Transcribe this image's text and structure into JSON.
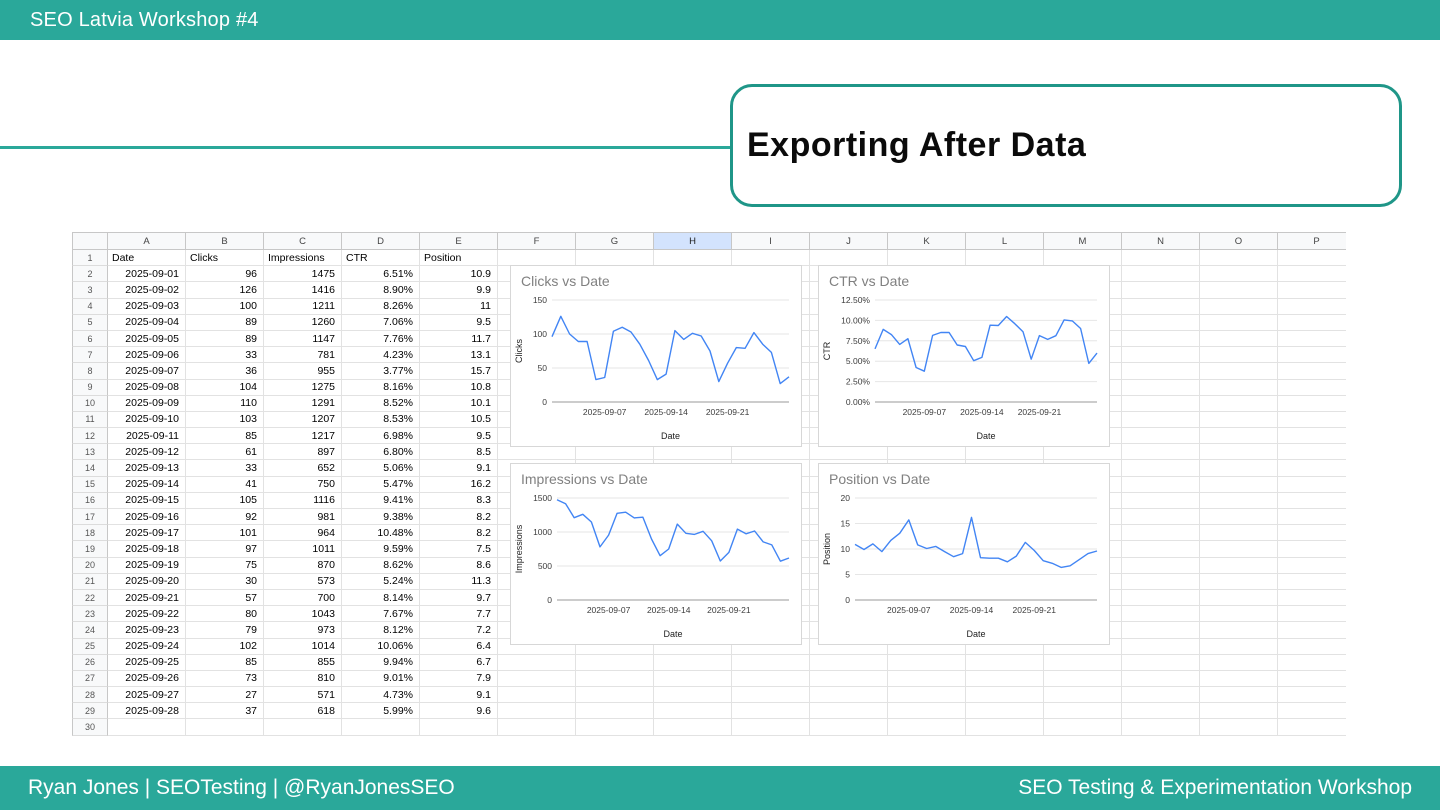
{
  "header": {
    "title": "SEO Latvia Workshop #4"
  },
  "slide": {
    "title": "Exporting After Data"
  },
  "footer": {
    "left": "Ryan Jones | SEOTesting | @RyanJonesSEO",
    "right": "SEO Testing & Experimentation Workshop"
  },
  "colors": {
    "teal": "#2AA89A",
    "teal_dark": "#1F9688",
    "chart_line": "#4285F4",
    "selected_col_bg": "#D3E3FD"
  },
  "spreadsheet": {
    "column_letters": [
      "A",
      "B",
      "C",
      "D",
      "E",
      "F",
      "G",
      "H",
      "I",
      "J",
      "K",
      "L",
      "M",
      "N",
      "O",
      "P"
    ],
    "highlighted_column": "H",
    "visible_rows": 30,
    "header_row": [
      "Date",
      "Clicks",
      "Impressions",
      "CTR",
      "Position"
    ],
    "rows": [
      [
        "2025-09-01",
        "96",
        "1475",
        "6.51%",
        "10.9"
      ],
      [
        "2025-09-02",
        "126",
        "1416",
        "8.90%",
        "9.9"
      ],
      [
        "2025-09-03",
        "100",
        "1211",
        "8.26%",
        "11"
      ],
      [
        "2025-09-04",
        "89",
        "1260",
        "7.06%",
        "9.5"
      ],
      [
        "2025-09-05",
        "89",
        "1147",
        "7.76%",
        "11.7"
      ],
      [
        "2025-09-06",
        "33",
        "781",
        "4.23%",
        "13.1"
      ],
      [
        "2025-09-07",
        "36",
        "955",
        "3.77%",
        "15.7"
      ],
      [
        "2025-09-08",
        "104",
        "1275",
        "8.16%",
        "10.8"
      ],
      [
        "2025-09-09",
        "110",
        "1291",
        "8.52%",
        "10.1"
      ],
      [
        "2025-09-10",
        "103",
        "1207",
        "8.53%",
        "10.5"
      ],
      [
        "2025-09-11",
        "85",
        "1217",
        "6.98%",
        "9.5"
      ],
      [
        "2025-09-12",
        "61",
        "897",
        "6.80%",
        "8.5"
      ],
      [
        "2025-09-13",
        "33",
        "652",
        "5.06%",
        "9.1"
      ],
      [
        "2025-09-14",
        "41",
        "750",
        "5.47%",
        "16.2"
      ],
      [
        "2025-09-15",
        "105",
        "1116",
        "9.41%",
        "8.3"
      ],
      [
        "2025-09-16",
        "92",
        "981",
        "9.38%",
        "8.2"
      ],
      [
        "2025-09-17",
        "101",
        "964",
        "10.48%",
        "8.2"
      ],
      [
        "2025-09-18",
        "97",
        "1011",
        "9.59%",
        "7.5"
      ],
      [
        "2025-09-19",
        "75",
        "870",
        "8.62%",
        "8.6"
      ],
      [
        "2025-09-20",
        "30",
        "573",
        "5.24%",
        "11.3"
      ],
      [
        "2025-09-21",
        "57",
        "700",
        "8.14%",
        "9.7"
      ],
      [
        "2025-09-22",
        "80",
        "1043",
        "7.67%",
        "7.7"
      ],
      [
        "2025-09-23",
        "79",
        "973",
        "8.12%",
        "7.2"
      ],
      [
        "2025-09-24",
        "102",
        "1014",
        "10.06%",
        "6.4"
      ],
      [
        "2025-09-25",
        "85",
        "855",
        "9.94%",
        "6.7"
      ],
      [
        "2025-09-26",
        "73",
        "810",
        "9.01%",
        "7.9"
      ],
      [
        "2025-09-27",
        "27",
        "571",
        "4.73%",
        "9.1"
      ],
      [
        "2025-09-28",
        "37",
        "618",
        "5.99%",
        "9.6"
      ]
    ]
  },
  "chart_data": [
    {
      "type": "line",
      "title": "Clicks vs Date",
      "xlabel": "Date",
      "ylabel": "Clicks",
      "x": [
        "2025-09-01",
        "2025-09-02",
        "2025-09-03",
        "2025-09-04",
        "2025-09-05",
        "2025-09-06",
        "2025-09-07",
        "2025-09-08",
        "2025-09-09",
        "2025-09-10",
        "2025-09-11",
        "2025-09-12",
        "2025-09-13",
        "2025-09-14",
        "2025-09-15",
        "2025-09-16",
        "2025-09-17",
        "2025-09-18",
        "2025-09-19",
        "2025-09-20",
        "2025-09-21",
        "2025-09-22",
        "2025-09-23",
        "2025-09-24",
        "2025-09-25",
        "2025-09-26",
        "2025-09-27",
        "2025-09-28"
      ],
      "values": [
        96,
        126,
        100,
        89,
        89,
        33,
        36,
        104,
        110,
        103,
        85,
        61,
        33,
        41,
        105,
        92,
        101,
        97,
        75,
        30,
        57,
        80,
        79,
        102,
        85,
        73,
        27,
        37
      ],
      "ylim": [
        0,
        150
      ],
      "yticks": [
        0,
        50,
        100,
        150
      ],
      "ytick_labels": [
        "0",
        "50",
        "100",
        "150"
      ],
      "xticks": [
        {
          "label": "2025-09-07",
          "index": 6
        },
        {
          "label": "2025-09-14",
          "index": 13
        },
        {
          "label": "2025-09-21",
          "index": 20
        }
      ],
      "grid": true,
      "legend": "none"
    },
    {
      "type": "line",
      "title": "CTR vs Date",
      "xlabel": "Date",
      "ylabel": "CTR",
      "x": [
        "2025-09-01",
        "2025-09-02",
        "2025-09-03",
        "2025-09-04",
        "2025-09-05",
        "2025-09-06",
        "2025-09-07",
        "2025-09-08",
        "2025-09-09",
        "2025-09-10",
        "2025-09-11",
        "2025-09-12",
        "2025-09-13",
        "2025-09-14",
        "2025-09-15",
        "2025-09-16",
        "2025-09-17",
        "2025-09-18",
        "2025-09-19",
        "2025-09-20",
        "2025-09-21",
        "2025-09-22",
        "2025-09-23",
        "2025-09-24",
        "2025-09-25",
        "2025-09-26",
        "2025-09-27",
        "2025-09-28"
      ],
      "values": [
        6.51,
        8.9,
        8.26,
        7.06,
        7.76,
        4.23,
        3.77,
        8.16,
        8.52,
        8.53,
        6.98,
        6.8,
        5.06,
        5.47,
        9.41,
        9.38,
        10.48,
        9.59,
        8.62,
        5.24,
        8.14,
        7.67,
        8.12,
        10.06,
        9.94,
        9.01,
        4.73,
        5.99
      ],
      "ylim": [
        0,
        12.5
      ],
      "yticks": [
        0,
        2.5,
        5,
        7.5,
        10,
        12.5
      ],
      "ytick_labels": [
        "0.00%",
        "2.50%",
        "5.00%",
        "7.50%",
        "10.00%",
        "12.50%"
      ],
      "xticks": [
        {
          "label": "2025-09-07",
          "index": 6
        },
        {
          "label": "2025-09-14",
          "index": 13
        },
        {
          "label": "2025-09-21",
          "index": 20
        }
      ],
      "grid": true,
      "legend": "none"
    },
    {
      "type": "line",
      "title": "Impressions vs Date",
      "xlabel": "Date",
      "ylabel": "Impressions",
      "x": [
        "2025-09-01",
        "2025-09-02",
        "2025-09-03",
        "2025-09-04",
        "2025-09-05",
        "2025-09-06",
        "2025-09-07",
        "2025-09-08",
        "2025-09-09",
        "2025-09-10",
        "2025-09-11",
        "2025-09-12",
        "2025-09-13",
        "2025-09-14",
        "2025-09-15",
        "2025-09-16",
        "2025-09-17",
        "2025-09-18",
        "2025-09-19",
        "2025-09-20",
        "2025-09-21",
        "2025-09-22",
        "2025-09-23",
        "2025-09-24",
        "2025-09-25",
        "2025-09-26",
        "2025-09-27",
        "2025-09-28"
      ],
      "values": [
        1475,
        1416,
        1211,
        1260,
        1147,
        781,
        955,
        1275,
        1291,
        1207,
        1217,
        897,
        652,
        750,
        1116,
        981,
        964,
        1011,
        870,
        573,
        700,
        1043,
        973,
        1014,
        855,
        810,
        571,
        618
      ],
      "ylim": [
        0,
        1500
      ],
      "yticks": [
        0,
        500,
        1000,
        1500
      ],
      "ytick_labels": [
        "0",
        "500",
        "1000",
        "1500"
      ],
      "xticks": [
        {
          "label": "2025-09-07",
          "index": 6
        },
        {
          "label": "2025-09-14",
          "index": 13
        },
        {
          "label": "2025-09-21",
          "index": 20
        }
      ],
      "grid": true,
      "legend": "none"
    },
    {
      "type": "line",
      "title": "Position vs Date",
      "xlabel": "Date",
      "ylabel": "Position",
      "x": [
        "2025-09-01",
        "2025-09-02",
        "2025-09-03",
        "2025-09-04",
        "2025-09-05",
        "2025-09-06",
        "2025-09-07",
        "2025-09-08",
        "2025-09-09",
        "2025-09-10",
        "2025-09-11",
        "2025-09-12",
        "2025-09-13",
        "2025-09-14",
        "2025-09-15",
        "2025-09-16",
        "2025-09-17",
        "2025-09-18",
        "2025-09-19",
        "2025-09-20",
        "2025-09-21",
        "2025-09-22",
        "2025-09-23",
        "2025-09-24",
        "2025-09-25",
        "2025-09-26",
        "2025-09-27",
        "2025-09-28"
      ],
      "values": [
        10.9,
        9.9,
        11,
        9.5,
        11.7,
        13.1,
        15.7,
        10.8,
        10.1,
        10.5,
        9.5,
        8.5,
        9.1,
        16.2,
        8.3,
        8.2,
        8.2,
        7.5,
        8.6,
        11.3,
        9.7,
        7.7,
        7.2,
        6.4,
        6.7,
        7.9,
        9.1,
        9.6
      ],
      "ylim": [
        0,
        20
      ],
      "yticks": [
        0,
        5,
        10,
        15,
        20
      ],
      "ytick_labels": [
        "0",
        "5",
        "10",
        "15",
        "20"
      ],
      "xticks": [
        {
          "label": "2025-09-07",
          "index": 6
        },
        {
          "label": "2025-09-14",
          "index": 13
        },
        {
          "label": "2025-09-21",
          "index": 20
        }
      ],
      "grid": true,
      "legend": "none"
    }
  ]
}
